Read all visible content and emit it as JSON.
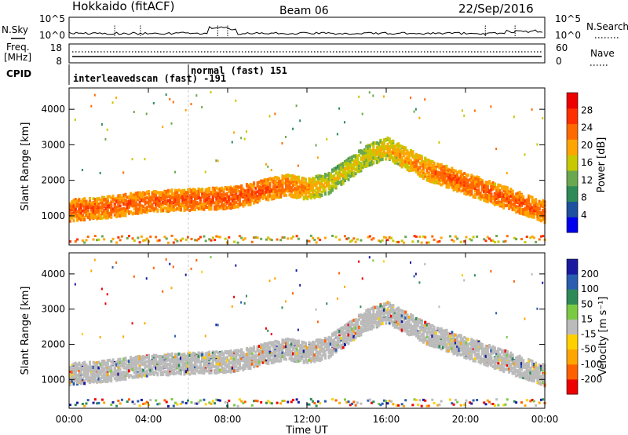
{
  "header": {
    "station": "Hokkaido (fitACF)",
    "beam": "Beam 06",
    "date": "22/Sep/2016"
  },
  "noise_panel": {
    "left_label": "N.Sky",
    "right_label": "N.Search",
    "left_ticks": [
      "10^5",
      "10^0"
    ],
    "right_ticks": [
      "10^5",
      "10^0"
    ]
  },
  "freq_panel": {
    "left_label_1": "Freq.",
    "left_label_2": "[MHz]",
    "left_ticks": [
      "18",
      "8"
    ],
    "right_label": "Nave",
    "right_ticks": [
      "60",
      "0"
    ]
  },
  "cpid_panel": {
    "label": "CPID",
    "modes": [
      {
        "text": "interleavedscan (fast) -191"
      },
      {
        "text": "normal (fast) 151"
      }
    ]
  },
  "x_axis": {
    "label": "Time UT",
    "ticks": [
      "00:00",
      "04:00",
      "08:00",
      "12:00",
      "16:00",
      "20:00",
      "00:00"
    ]
  },
  "power_panel": {
    "ylabel": "Slant Range [km]",
    "yticks": [
      "4000",
      "3000",
      "2000",
      "1000"
    ],
    "colorbar_label": "Power [dB]",
    "colorbar_ticks": [
      "28",
      "24",
      "20",
      "16",
      "12",
      "8",
      "4"
    ],
    "colors": [
      "#0000ee",
      "#1e50a0",
      "#2e8b57",
      "#6aa84f",
      "#c8c800",
      "#ffa500",
      "#ff6a00",
      "#ff3000",
      "#ee0000"
    ]
  },
  "velocity_panel": {
    "ylabel": "Slant Range [km]",
    "yticks": [
      "4000",
      "3000",
      "2000",
      "1000"
    ],
    "colorbar_label": "Velocity [m s⁻¹]",
    "colorbar_ticks": [
      "200",
      "100",
      "50",
      "15",
      "-15",
      "-50",
      "-100",
      "-200"
    ],
    "colors": [
      "#1a1aa0",
      "#2a5db0",
      "#2e8b57",
      "#7ac943",
      "#bbbbbb",
      "#ffd000",
      "#ffa500",
      "#ff6000",
      "#ee0000"
    ]
  },
  "chart_data": [
    {
      "type": "heatmap",
      "title": "Power",
      "xlabel": "Time UT",
      "ylabel": "Slant Range [km]",
      "xlim": [
        "00:00",
        "24:00"
      ],
      "ylim": [
        180,
        4600
      ],
      "colorbar": {
        "label": "Power [dB]",
        "range": [
          0,
          32
        ]
      },
      "echo_band": {
        "x_hours": [
          0,
          2,
          4,
          6,
          8,
          9,
          10,
          11,
          12,
          13,
          14,
          15,
          16,
          17,
          18,
          19,
          20,
          22,
          24
        ],
        "range_km": [
          1150,
          1250,
          1400,
          1450,
          1500,
          1600,
          1750,
          1850,
          1750,
          1900,
          2300,
          2700,
          2900,
          2600,
          2300,
          2100,
          1900,
          1500,
          1100
        ],
        "dominant_power_db": [
          26,
          26,
          26,
          26,
          27,
          27,
          26,
          25,
          22,
          18,
          18,
          18,
          20,
          22,
          24,
          26,
          26,
          26,
          26
        ]
      }
    },
    {
      "type": "heatmap",
      "title": "Velocity",
      "xlabel": "Time UT",
      "ylabel": "Slant Range [km]",
      "xlim": [
        "00:00",
        "24:00"
      ],
      "ylim": [
        180,
        4600
      ],
      "colorbar": {
        "label": "Velocity [m s⁻¹]",
        "range": [
          -200,
          200
        ]
      },
      "echo_band": {
        "x_hours": [
          0,
          2,
          4,
          6,
          8,
          9,
          10,
          11,
          12,
          13,
          14,
          15,
          16,
          17,
          18,
          19,
          20,
          22,
          24
        ],
        "range_km": [
          1150,
          1250,
          1400,
          1450,
          1500,
          1600,
          1750,
          1850,
          1750,
          1900,
          2300,
          2700,
          2900,
          2600,
          2300,
          2100,
          1900,
          1500,
          1100
        ],
        "dominant_velocity_ms": [
          0,
          0,
          0,
          0,
          0,
          0,
          0,
          0,
          0,
          0,
          0,
          0,
          0,
          0,
          0,
          0,
          0,
          0,
          0
        ]
      }
    }
  ]
}
